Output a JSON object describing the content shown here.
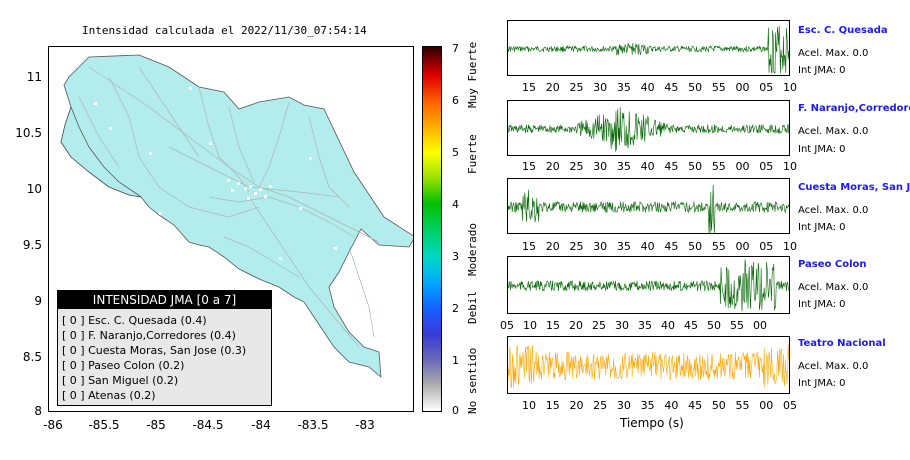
{
  "title": "Intensidad calculada el 2022/11/30_07:54:14",
  "map": {
    "lat_ticks": [
      "11",
      "10.5",
      "10",
      "9.5",
      "9",
      "8.5",
      "8"
    ],
    "lon_ticks": [
      "-86",
      "-85.5",
      "-85",
      "-84.5",
      "-84",
      "-83.5",
      "-83"
    ],
    "land_color": "#b3ecec"
  },
  "colorbar": {
    "ticks": [
      "7",
      "6",
      "5",
      "4",
      "3",
      "2",
      "1",
      "0"
    ],
    "words": [
      "Muy Fuerte",
      "Fuerte",
      "Moderado",
      "Debil",
      "No sentido"
    ]
  },
  "legend": {
    "title": "INTENSIDAD JMA [0 a 7]",
    "items": [
      "[ 0 ]  Esc. C. Quesada (0.4)",
      "[ 0 ]  F. Naranjo,Corredores (0.4)",
      "[ 0 ]  Cuesta Moras, San Jose (0.3)",
      "[ 0 ]  Paseo Colon (0.2)",
      "[ 0 ]  San Miguel (0.2)",
      "[ 0 ]  Atenas (0.2)"
    ]
  },
  "stations": [
    {
      "name": "Esc. C. Quesada",
      "acel": "Acel. Max. 0.0",
      "int": "Int JMA: 0",
      "color": "#006400",
      "ticks": [
        "15",
        "20",
        "25",
        "30",
        "35",
        "40",
        "45",
        "50",
        "55",
        "00",
        "05",
        "10"
      ]
    },
    {
      "name": "F. Naranjo,Corredores",
      "acel": "Acel. Max. 0.0",
      "int": "Int JMA: 0",
      "color": "#006400",
      "ticks": [
        "15",
        "20",
        "25",
        "30",
        "35",
        "40",
        "45",
        "50",
        "55",
        "00",
        "05",
        "10"
      ]
    },
    {
      "name": "Cuesta Moras, San Jose",
      "acel": "Acel. Max. 0.0",
      "int": "Int JMA: 0",
      "color": "#006400",
      "ticks": [
        "15",
        "20",
        "25",
        "30",
        "35",
        "40",
        "45",
        "50",
        "55",
        "00",
        "05",
        "10"
      ]
    },
    {
      "name": "Paseo Colon",
      "acel": "Acel. Max. 0.0",
      "int": "Int JMA: 0",
      "color": "#006400",
      "ticks": [
        "05",
        "10",
        "15",
        "20",
        "25",
        "30",
        "35",
        "40",
        "45",
        "50",
        "55",
        "00"
      ]
    },
    {
      "name": "Teatro Nacional",
      "acel": "Acel. Max. 0.0",
      "int": "Int JMA: 0",
      "color": "#ffa500",
      "ticks": [
        "10",
        "15",
        "20",
        "25",
        "30",
        "35",
        "40",
        "45",
        "50",
        "55",
        "00",
        "05"
      ]
    }
  ],
  "xlabel": "Tiempo (s)"
}
